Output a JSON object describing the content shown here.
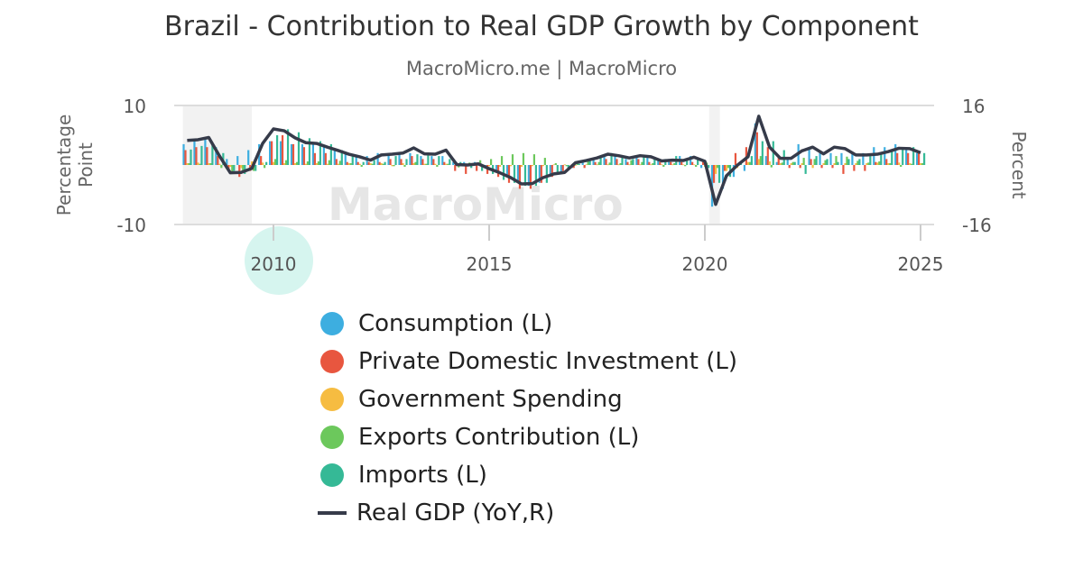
{
  "title": "Brazil - Contribution to Real GDP Growth by Component",
  "subtitle": "MacroMicro.me | MacroMicro",
  "watermark": "MacroMicro",
  "chart_data": {
    "type": "bar+line",
    "title": "Brazil - Contribution to Real GDP Growth by Component",
    "ylabel_left": "Percentage Point",
    "ylabel_right": "Percent",
    "ylim_left": [
      -10,
      10
    ],
    "ylim_right": [
      -16,
      16
    ],
    "left_ticks": [
      "10",
      "-10"
    ],
    "right_ticks": [
      "16",
      "-16"
    ],
    "x_ticks": [
      "2010",
      "2015",
      "2020",
      "2025"
    ],
    "x_start": 2008.0,
    "x_step": 0.25,
    "x_range": [
      2007.9,
      2025.3
    ],
    "recessions": [
      [
        2007.9,
        2009.5
      ],
      [
        2020.1,
        2020.35
      ]
    ],
    "legend_position": "bottom",
    "series": [
      {
        "name": "Consumption (L)",
        "color": "#3daee0",
        "axis": "left",
        "values": [
          3.5,
          4,
          4.5,
          3,
          1,
          1.5,
          2.5,
          3.5,
          4,
          4,
          3.5,
          3.5,
          3.5,
          3,
          2.5,
          2,
          1.5,
          1.5,
          2,
          2,
          2,
          2,
          1.5,
          1.5,
          1.5,
          0.5,
          0.5,
          0.5,
          0,
          -1,
          -2,
          -3,
          -3.5,
          -3,
          -2,
          -1.5,
          -0.5,
          0.5,
          1,
          1.5,
          1.5,
          1,
          1.5,
          1.5,
          1,
          1,
          1.5,
          1.5,
          -0.5,
          -7,
          -4,
          -2,
          -1,
          7,
          1.5,
          0.5,
          1,
          3.5,
          3,
          2,
          2,
          2,
          2,
          2,
          3,
          3,
          3.5,
          2.5,
          2
        ]
      },
      {
        "name": "Private Domestic Investment (L)",
        "color": "#e8563f",
        "axis": "left",
        "values": [
          2.5,
          3,
          3,
          1.5,
          -1,
          -2,
          -1,
          1.5,
          4,
          5,
          3.5,
          3,
          2,
          2,
          1,
          0.5,
          0.5,
          0.5,
          0.5,
          1,
          1,
          1.5,
          1,
          1,
          0.5,
          -1,
          -1.5,
          -1,
          -1.5,
          -2,
          -3,
          -4,
          -4,
          -3,
          -2,
          -1,
          -0.5,
          -0.5,
          0.5,
          1,
          1,
          0.5,
          1,
          0.5,
          0.5,
          0.5,
          0.5,
          0.5,
          0.5,
          -3,
          -1,
          2,
          3,
          5.5,
          3,
          1.5,
          -0.5,
          -0.5,
          1,
          -0.5,
          -0.5,
          -1.5,
          -1,
          -1,
          0.5,
          1,
          2,
          2,
          2
        ]
      },
      {
        "name": "Government Spending",
        "color": "#f6bc41",
        "axis": "left",
        "values": [
          0.3,
          0.4,
          0.3,
          0.2,
          -0.3,
          -0.5,
          0.6,
          0.4,
          0.5,
          0.3,
          0.3,
          0.2,
          0.3,
          0.2,
          0.2,
          0.3,
          0.2,
          0.3,
          0.3,
          -0.2,
          0.3,
          0.3,
          0.2,
          0.2,
          0.2,
          0.3,
          0.2,
          0.2,
          -0.2,
          -0.3,
          -0.2,
          -0.3,
          -0.2,
          -0.2,
          0.1,
          0.1,
          -0.1,
          0.1,
          0.1,
          0.1,
          0.1,
          0.1,
          0.1,
          0.1,
          0.1,
          0.1,
          0.1,
          0.1,
          -0.3,
          -1.5,
          -1,
          -0.5,
          0.5,
          1,
          0.6,
          0.3,
          0.3,
          0.3,
          -0.5,
          0.3,
          0.3,
          0.3,
          0.3,
          0.3,
          0.4,
          0.3,
          0.4,
          0.3,
          0.3
        ]
      },
      {
        "name": "Exports Contribution (L)",
        "color": "#6cc85c",
        "axis": "left",
        "values": [
          0.3,
          0.2,
          0.3,
          -0.5,
          -1.5,
          -1,
          -1,
          -0.5,
          1,
          0.8,
          0.5,
          0.6,
          0.6,
          0.8,
          0.7,
          0.3,
          -0.3,
          0.2,
          0.2,
          -0.2,
          -0.3,
          0.5,
          0.2,
          -0.3,
          0.2,
          -0.4,
          0.4,
          0.8,
          1,
          1.5,
          1.8,
          2,
          1.8,
          1.2,
          0.3,
          -0.2,
          0.4,
          0.6,
          0.5,
          0.4,
          0.3,
          0.8,
          0.5,
          0.3,
          -0.3,
          0.3,
          -0.2,
          -0.3,
          0.4,
          -0.5,
          -0.5,
          0.3,
          0.5,
          1.5,
          -0.4,
          0.4,
          0.5,
          1.2,
          1,
          0.8,
          1.5,
          1.4,
          0.7,
          0.4,
          0.6,
          0.3,
          -0.3,
          0.2,
          0.3
        ]
      },
      {
        "name": "Imports (L)",
        "color": "#35b996",
        "axis": "left",
        "values": [
          2.6,
          3.2,
          3.5,
          2,
          -1,
          -1.5,
          -1,
          0.5,
          5,
          6,
          5.5,
          4.5,
          4,
          3.5,
          2.5,
          1.5,
          0.5,
          0.8,
          0.5,
          1.5,
          1,
          1.8,
          2,
          1.5,
          1,
          0.5,
          -0.5,
          -1,
          -1.5,
          -2.5,
          -3,
          -3.5,
          -3.5,
          -3,
          -1.5,
          -0.5,
          0.2,
          1,
          1.5,
          2,
          1.5,
          1,
          1.5,
          1,
          1,
          1.5,
          1,
          1,
          -0.5,
          -3,
          -2,
          0.3,
          1.5,
          4,
          4,
          2.5,
          0.5,
          -1.5,
          1.5,
          1,
          0.5,
          1,
          1,
          1.5,
          2,
          2.5,
          3,
          3,
          2
        ]
      },
      {
        "name": "Real GDP (YoY,R)",
        "color": "#363b4a",
        "axis": "right",
        "type": "line",
        "values": [
          6.6,
          6.8,
          7.4,
          2.4,
          -2.1,
          -2.0,
          -0.9,
          5.8,
          9.7,
          9.2,
          7.3,
          6.0,
          5.8,
          4.8,
          3.9,
          2.9,
          2.2,
          1.3,
          2.7,
          2.9,
          3.2,
          4.6,
          3.0,
          2.9,
          4.0,
          0.1,
          0.0,
          0.3,
          -1.0,
          -2.1,
          -3.4,
          -5.1,
          -5.0,
          -3.4,
          -2.4,
          -2.0,
          0.6,
          1.2,
          1.9,
          2.9,
          2.5,
          1.9,
          2.5,
          2.2,
          1.1,
          1.3,
          1.2,
          2.1,
          1.0,
          -10.6,
          -2.9,
          -0.1,
          2.2,
          13.1,
          4.8,
          1.8,
          1.8,
          3.8,
          4.8,
          3.0,
          4.8,
          4.4,
          2.7,
          2.7,
          2.9,
          3.6,
          4.5,
          4.4,
          3.3
        ]
      }
    ]
  }
}
